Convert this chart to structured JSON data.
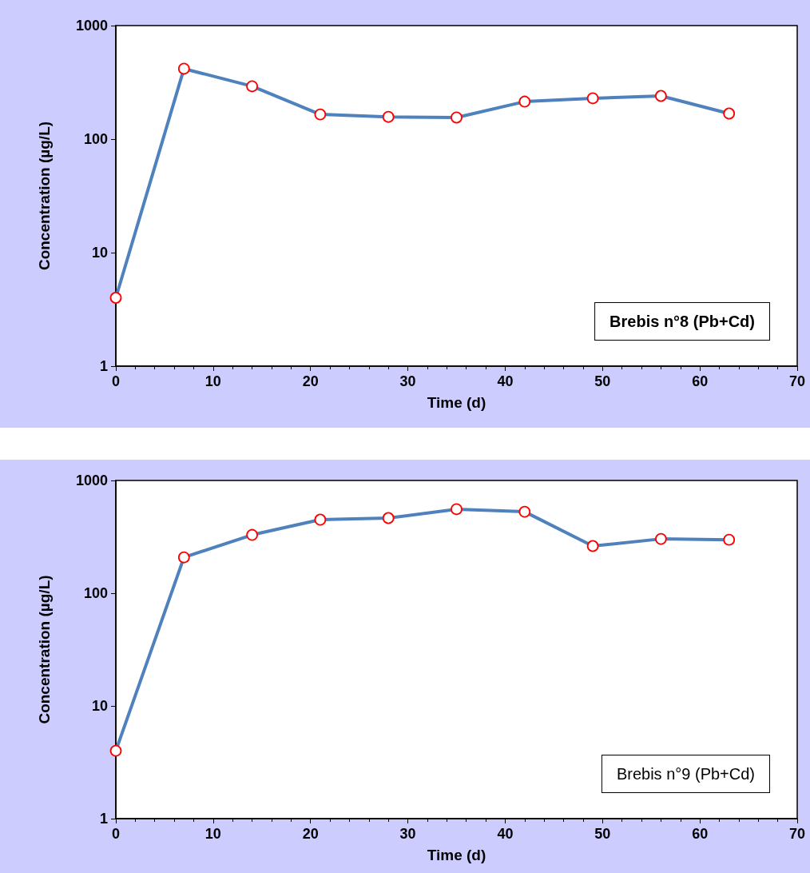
{
  "chart_data": [
    {
      "type": "line",
      "xlabel": "Time (d)",
      "ylabel": "Concentration (µg/L)",
      "annotations": [
        "Brebis n°8 (Pb+Cd)"
      ],
      "x": [
        0,
        7,
        14,
        21,
        28,
        35,
        42,
        49,
        56,
        63
      ],
      "series": [
        {
          "color": "#4f81bd",
          "values": [
            4,
            417,
            292,
            165,
            157,
            155,
            214,
            229,
            240,
            168
          ]
        }
      ],
      "xlim": [
        0,
        70
      ],
      "xticks": [
        0,
        10,
        20,
        30,
        40,
        50,
        60,
        70
      ],
      "ylim": [
        1,
        1000
      ],
      "yticks": [
        1,
        10,
        100,
        1000
      ],
      "log": "y",
      "grid": false,
      "marker": "circle",
      "line_style": "solid"
    },
    {
      "type": "line",
      "xlabel": "Time (d)",
      "ylabel": "Concentration (µg/L)",
      "annotations": [
        "Brebis n°9 (Pb+Cd)"
      ],
      "x": [
        0,
        7,
        14,
        21,
        28,
        35,
        42,
        49,
        56,
        63
      ],
      "series": [
        {
          "color": "#4f81bd",
          "values": [
            4,
            208,
            329,
            449,
            464,
            556,
            528,
            262,
            303,
            298
          ]
        }
      ],
      "xlim": [
        0,
        70
      ],
      "xticks": [
        0,
        10,
        20,
        30,
        40,
        50,
        60,
        70
      ],
      "ylim": [
        1,
        1000
      ],
      "yticks": [
        1,
        10,
        100,
        1000
      ],
      "log": "y",
      "grid": false,
      "marker": "circle",
      "line_style": "solid"
    }
  ]
}
